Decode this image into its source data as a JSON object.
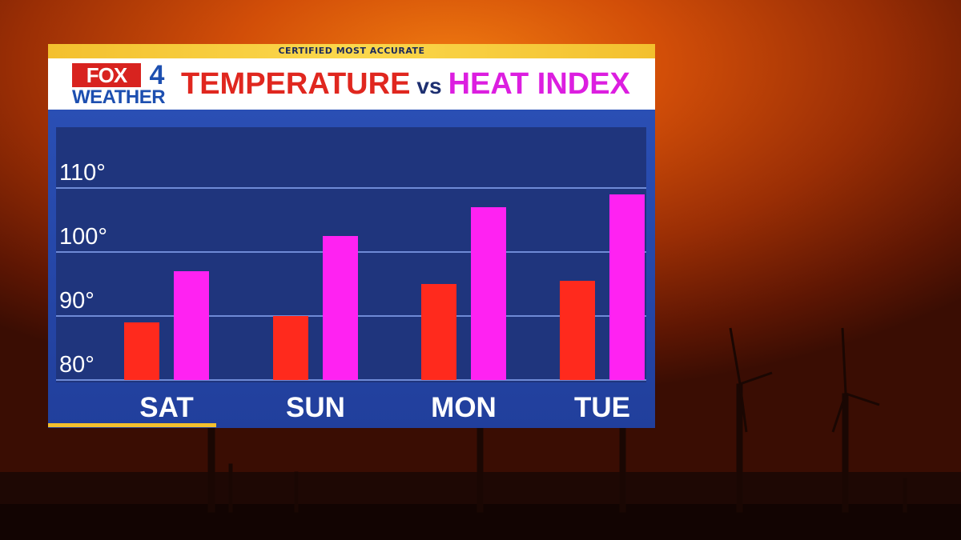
{
  "header": {
    "tagline": "CERTIFIED MOST ACCURATE",
    "logo_main": "FOX",
    "logo_number": "4",
    "logo_sub": "WEATHER",
    "title_left": "TEMPERATURE",
    "title_vs": "vs",
    "title_right": "HEAT INDEX"
  },
  "colors": {
    "temperature": "#ff2a1d",
    "heat_index": "#ff22f2",
    "panel_blue": "#213f9c",
    "accent_yellow": "#f3c02e"
  },
  "chart_data": {
    "type": "bar",
    "categories": [
      "SAT",
      "SUN",
      "MON",
      "TUE"
    ],
    "series": [
      {
        "name": "TEMPERATURE",
        "values": [
          89,
          90,
          95,
          95.5
        ]
      },
      {
        "name": "HEAT INDEX",
        "values": [
          97,
          102.5,
          107,
          109
        ]
      }
    ],
    "ylim": [
      80,
      110
    ],
    "yticks": [
      80,
      90,
      100,
      110
    ],
    "ytick_labels": [
      "80°",
      "90°",
      "100°",
      "110°"
    ],
    "grid": true,
    "legend": "none"
  }
}
